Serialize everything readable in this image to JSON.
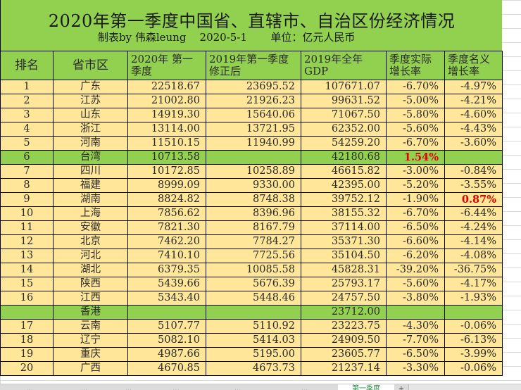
{
  "sheet": {
    "title": "2020年第一季度中国省、直辖市、自治区份经济情况",
    "subtitle_author": "制表by 伟森leung",
    "subtitle_date": "2020-5-1",
    "subtitle_unit": "单位：亿元人民币",
    "headers": [
      "排名",
      "省市区",
      "2020年 第一季度",
      "2019年第一季度 修正后",
      "2019年全年 GDP",
      "季度实际 增长率",
      "季度名义 增长率"
    ],
    "rows": [
      {
        "rank": "1",
        "region": "广东",
        "q1_2020": "22518.67",
        "q1_2019": "23695.52",
        "gdp_2019": "107671.07",
        "real": "-6.70%",
        "nominal": "-4.97%",
        "type": "normal"
      },
      {
        "rank": "2",
        "region": "江苏",
        "q1_2020": "21002.80",
        "q1_2019": "21926.23",
        "gdp_2019": "99631.52",
        "real": "-5.00%",
        "nominal": "-4.21%",
        "type": "normal"
      },
      {
        "rank": "3",
        "region": "山东",
        "q1_2020": "14919.30",
        "q1_2019": "15640.06",
        "gdp_2019": "71067.50",
        "real": "-5.80%",
        "nominal": "-4.60%",
        "type": "normal"
      },
      {
        "rank": "4",
        "region": "浙江",
        "q1_2020": "13114.00",
        "q1_2019": "13721.95",
        "gdp_2019": "62352.00",
        "real": "-5.60%",
        "nominal": "-4.43%",
        "type": "normal"
      },
      {
        "rank": "5",
        "region": "河南",
        "q1_2020": "11510.15",
        "q1_2019": "11940.99",
        "gdp_2019": "54259.20",
        "real": "-6.70%",
        "nominal": "-3.60%",
        "type": "normal"
      },
      {
        "rank": "6",
        "region": "台湾",
        "q1_2020": "10713.58",
        "q1_2019": "",
        "gdp_2019": "42180.68",
        "real": "1.54%",
        "nominal": "",
        "type": "green",
        "real_pos": true
      },
      {
        "rank": "7",
        "region": "四川",
        "q1_2020": "10172.85",
        "q1_2019": "10258.89",
        "gdp_2019": "46615.82",
        "real": "-3.00%",
        "nominal": "-0.84%",
        "type": "normal"
      },
      {
        "rank": "8",
        "region": "福建",
        "q1_2020": "8999.09",
        "q1_2019": "9330.00",
        "gdp_2019": "42395.00",
        "real": "-5.20%",
        "nominal": "-3.55%",
        "type": "normal"
      },
      {
        "rank": "9",
        "region": "湖南",
        "q1_2020": "8824.82",
        "q1_2019": "8748.38",
        "gdp_2019": "39752.12",
        "real": "-1.90%",
        "nominal": "0.87%",
        "type": "normal",
        "nominal_pos": true
      },
      {
        "rank": "10",
        "region": "上海",
        "q1_2020": "7856.62",
        "q1_2019": "8396.96",
        "gdp_2019": "38155.32",
        "real": "-6.70%",
        "nominal": "-6.44%",
        "type": "normal"
      },
      {
        "rank": "11",
        "region": "安徽",
        "q1_2020": "7821.30",
        "q1_2019": "8167.79",
        "gdp_2019": "37114.00",
        "real": "-6.50%",
        "nominal": "-4.24%",
        "type": "normal"
      },
      {
        "rank": "12",
        "region": "北京",
        "q1_2020": "7462.20",
        "q1_2019": "7784.27",
        "gdp_2019": "35371.30",
        "real": "-6.60%",
        "nominal": "-4.14%",
        "type": "normal"
      },
      {
        "rank": "13",
        "region": "河北",
        "q1_2020": "7410.10",
        "q1_2019": "7725.56",
        "gdp_2019": "35104.50",
        "real": "-6.20%",
        "nominal": "-4.08%",
        "type": "normal"
      },
      {
        "rank": "14",
        "region": "湖北",
        "q1_2020": "6379.35",
        "q1_2019": "10085.58",
        "gdp_2019": "45828.31",
        "real": "-39.20%",
        "nominal": "-36.75%",
        "type": "normal"
      },
      {
        "rank": "15",
        "region": "陕西",
        "q1_2020": "5439.66",
        "q1_2019": "5676.39",
        "gdp_2019": "25793.17",
        "real": "-5.60%",
        "nominal": "-4.17%",
        "type": "normal"
      },
      {
        "rank": "16",
        "region": "江西",
        "q1_2020": "5343.40",
        "q1_2019": "5448.46",
        "gdp_2019": "24757.50",
        "real": "-3.80%",
        "nominal": "-1.93%",
        "type": "normal"
      },
      {
        "rank": "",
        "region": "香港",
        "q1_2020": "",
        "q1_2019": "",
        "gdp_2019": "23712.00",
        "real": "",
        "nominal": "",
        "type": "green"
      },
      {
        "rank": "17",
        "region": "云南",
        "q1_2020": "5107.77",
        "q1_2019": "5110.92",
        "gdp_2019": "23223.75",
        "real": "-4.30%",
        "nominal": "-0.06%",
        "type": "normal"
      },
      {
        "rank": "18",
        "region": "辽宁",
        "q1_2020": "5082.10",
        "q1_2019": "5414.03",
        "gdp_2019": "24909.50",
        "real": "-7.70%",
        "nominal": "-6.13%",
        "type": "normal"
      },
      {
        "rank": "19",
        "region": "重庆",
        "q1_2020": "4987.66",
        "q1_2019": "5195.00",
        "gdp_2019": "23605.77",
        "real": "-6.50%",
        "nominal": "-3.99%",
        "type": "normal"
      },
      {
        "rank": "20",
        "region": "广西",
        "q1_2020": "4670.85",
        "q1_2019": "4673.73",
        "gdp_2019": "21237.14",
        "real": "-3.30%",
        "nominal": "-0.06%",
        "type": "normal"
      }
    ]
  },
  "colors": {
    "header_green": "#92d050",
    "row_yellow": "#ffe699",
    "positive_red": "#e00000"
  },
  "sheet_tabs": [
    {
      "label": "...",
      "active": false
    },
    {
      "label": "...",
      "active": false
    },
    {
      "label": "...",
      "active": false
    },
    {
      "label": "...",
      "active": false
    },
    {
      "label": "...",
      "active": false
    },
    {
      "label": "...",
      "active": false
    },
    {
      "label": "第一季度",
      "active": true
    },
    {
      "label": "+",
      "active": false
    }
  ]
}
